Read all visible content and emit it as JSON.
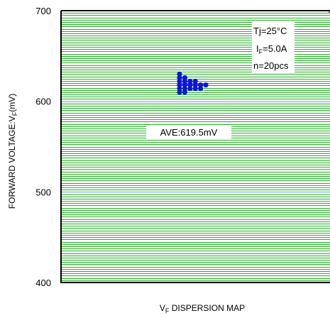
{
  "chart_data": {
    "type": "scatter",
    "title": "",
    "xlabel": {
      "main": "V",
      "sub": "F",
      "rest": " DISPERSION MAP"
    },
    "ylabel": {
      "main": "FORWARD VOLTAGE:V",
      "sub": "F",
      "rest": "(mV)"
    },
    "ylim": [
      400,
      700
    ],
    "yticks": [
      400,
      500,
      600,
      700
    ],
    "grid": true,
    "grid_minor_step": 2.5,
    "colors": {
      "minor_grid": "#22b022",
      "major_grid": "#5aa9e6",
      "points": "#0b16d8",
      "axis": "#000000"
    },
    "annotations": {
      "condition_tj": "Tj=25°C",
      "condition_if_main": "I",
      "condition_if_sub": "F",
      "condition_if_rest": "=5.0A",
      "condition_n": "n=20pcs",
      "average": "AVE:619.5mV"
    },
    "points": [
      {
        "column": 0,
        "y": 610
      },
      {
        "column": 0,
        "y": 614
      },
      {
        "column": 0,
        "y": 618
      },
      {
        "column": 0,
        "y": 622
      },
      {
        "column": 0,
        "y": 626
      },
      {
        "column": 0,
        "y": 630
      },
      {
        "column": 1,
        "y": 610
      },
      {
        "column": 1,
        "y": 614
      },
      {
        "column": 1,
        "y": 618
      },
      {
        "column": 1,
        "y": 622
      },
      {
        "column": 1,
        "y": 626
      },
      {
        "column": 2,
        "y": 614
      },
      {
        "column": 2,
        "y": 618
      },
      {
        "column": 2,
        "y": 622
      },
      {
        "column": 3,
        "y": 614
      },
      {
        "column": 3,
        "y": 618
      },
      {
        "column": 3,
        "y": 622
      },
      {
        "column": 4,
        "y": 614
      },
      {
        "column": 4,
        "y": 618
      },
      {
        "column": 5,
        "y": 618
      }
    ]
  }
}
